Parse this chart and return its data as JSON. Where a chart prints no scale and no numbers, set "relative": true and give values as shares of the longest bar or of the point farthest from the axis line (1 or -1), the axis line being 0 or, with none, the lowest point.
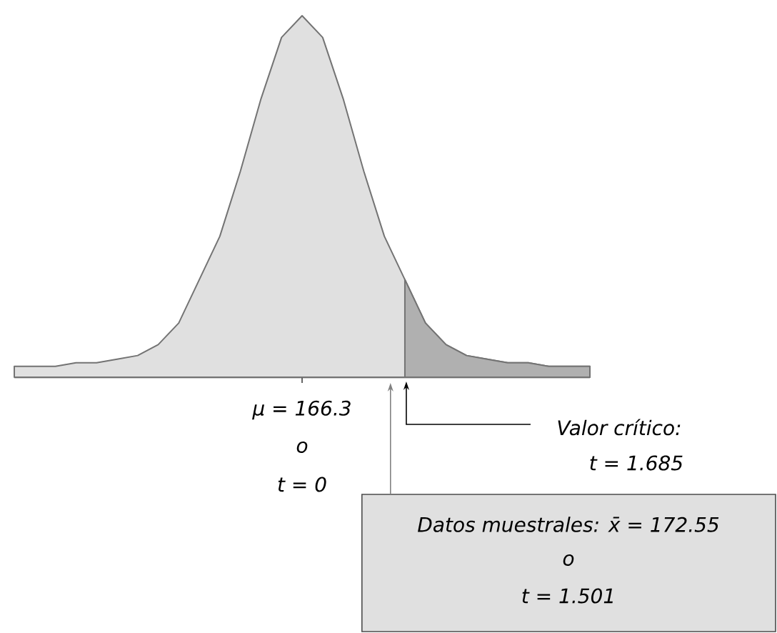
{
  "chart_data": {
    "type": "area",
    "relative": true,
    "categories": [
      null,
      null,
      null,
      null,
      null,
      null,
      null,
      null,
      null,
      null,
      null,
      null,
      null,
      null,
      null,
      null,
      null,
      null,
      null,
      null,
      null,
      null,
      null,
      null,
      null,
      null,
      null,
      null,
      null
    ],
    "series": [
      {
        "color": "#e0e0e0",
        "values": [
          0.03,
          0.03,
          0.03,
          0.04,
          0.04,
          0.05,
          0.06,
          0.09,
          0.15,
          0.27,
          0.39,
          0.57,
          0.77,
          0.94,
          1,
          0.94,
          0.77,
          0.57,
          0.39,
          0.27,
          0.15,
          0.09,
          0.06,
          0.05,
          0.04,
          0.04,
          0.03,
          0.03,
          0.03
        ]
      },
      {
        "color": "#b0b0b0",
        "values": [
          null,
          null,
          null,
          null,
          null,
          null,
          null,
          null,
          null,
          null,
          null,
          null,
          null,
          null,
          null,
          null,
          null,
          null,
          null,
          0.27,
          0.15,
          0.09,
          0.06,
          0.05,
          0.04,
          0.04,
          0.03,
          0.03,
          0.03
        ]
      }
    ],
    "annotations": [
      "μ = 166.3",
      "o",
      "t = 0",
      "Valor crítico:",
      "t = 1.685",
      "Datos muestrales: x̄ = 172.55",
      "o",
      "t = 1.501"
    ]
  }
}
